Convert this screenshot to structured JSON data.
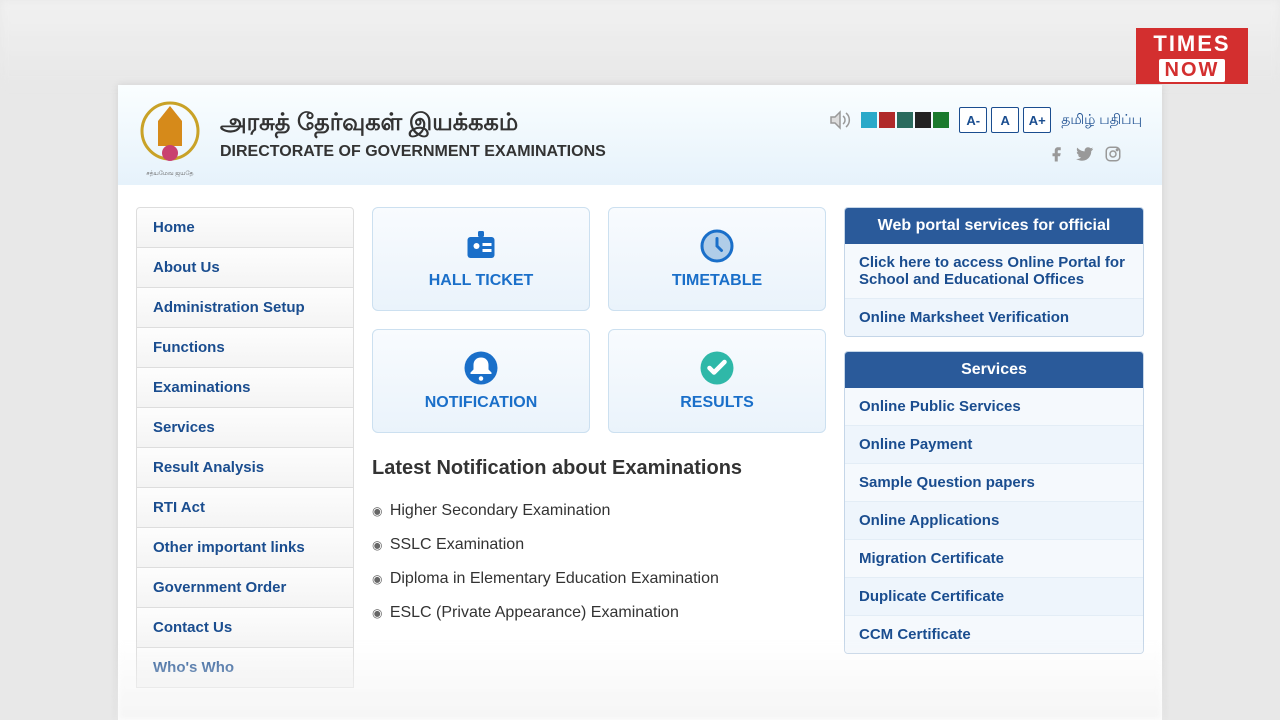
{
  "logo": {
    "line1": "TIMES",
    "line2": "NOW",
    "bg": "#d32f2f",
    "fg": "#ffffff"
  },
  "header": {
    "title_tamil": "அரசுத் தேர்வுகள் இயக்ககம்",
    "title_en": "DIRECTORATE OF GOVERNMENT EXAMINATIONS",
    "swatches": [
      "#2aa9c9",
      "#b02a2a",
      "#2a6b5e",
      "#222222",
      "#1a7a2d"
    ],
    "font_buttons": [
      "A-",
      "A",
      "A+"
    ],
    "lang_link": "தமிழ் பதிப்பு",
    "bg_gradient_from": "#fafeff",
    "bg_gradient_to": "#e6f2fb"
  },
  "sidebar": {
    "items": [
      "Home",
      "About Us",
      "Administration Setup",
      "Functions",
      "Examinations",
      "Services",
      "Result Analysis",
      "RTI Act",
      "Other important links",
      "Government Order",
      "Contact Us",
      "Who's Who"
    ],
    "text_color": "#1a4d8f",
    "font_size": 15
  },
  "tiles": [
    {
      "label": "HALL TICKET",
      "icon": "id-card"
    },
    {
      "label": "TIMETABLE",
      "icon": "clock"
    },
    {
      "label": "NOTIFICATION",
      "icon": "bell"
    },
    {
      "label": "RESULTS",
      "icon": "check"
    }
  ],
  "tile_style": {
    "label_color": "#1a6fc9",
    "icon_color": "#1a6fc9",
    "border_color": "#cce0f0"
  },
  "notifications": {
    "title": "Latest Notification about Examinations",
    "items": [
      "Higher Secondary Examination",
      "SSLC Examination",
      "Diploma in Elementary Education Examination",
      "ESLC (Private Appearance) Examination"
    ],
    "title_color": "#333333",
    "title_fontsize": 20
  },
  "right": {
    "panel1": {
      "title": "Web portal services for official",
      "items": [
        "Click here to access Online Portal for School and Educational Offices",
        "Online Marksheet Verification"
      ]
    },
    "panel2": {
      "title": "Services",
      "items": [
        "Online Public Services",
        "Online Payment",
        "Sample Question papers",
        "Online Applications",
        "Migration Certificate",
        "Duplicate Certificate",
        "CCM Certificate"
      ]
    },
    "header_bg": "#2a5a9a",
    "item_color": "#1a4d8f"
  }
}
